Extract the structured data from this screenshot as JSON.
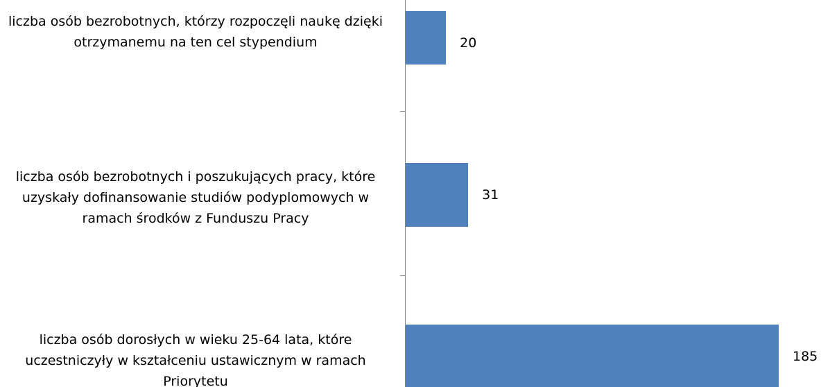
{
  "chart_data": {
    "type": "bar",
    "orientation": "horizontal",
    "categories": [
      "liczba osób bezrobotnych, którzy rozpoczęli naukę dzięki otrzymanemu na ten cel stypendium",
      "liczba osób bezrobotnych i poszukujących pracy, które uzyskały dofinansowanie studiów podyplomowych w ramach środków z Funduszu Pracy",
      "liczba osób dorosłych w wieku 25-64 lata, które uczestniczyły w kształceniu ustawicznym w ramach Priorytetu"
    ],
    "values": [
      20,
      31,
      185
    ],
    "color": "#4f81bd",
    "xlim": [
      0,
      185
    ]
  }
}
